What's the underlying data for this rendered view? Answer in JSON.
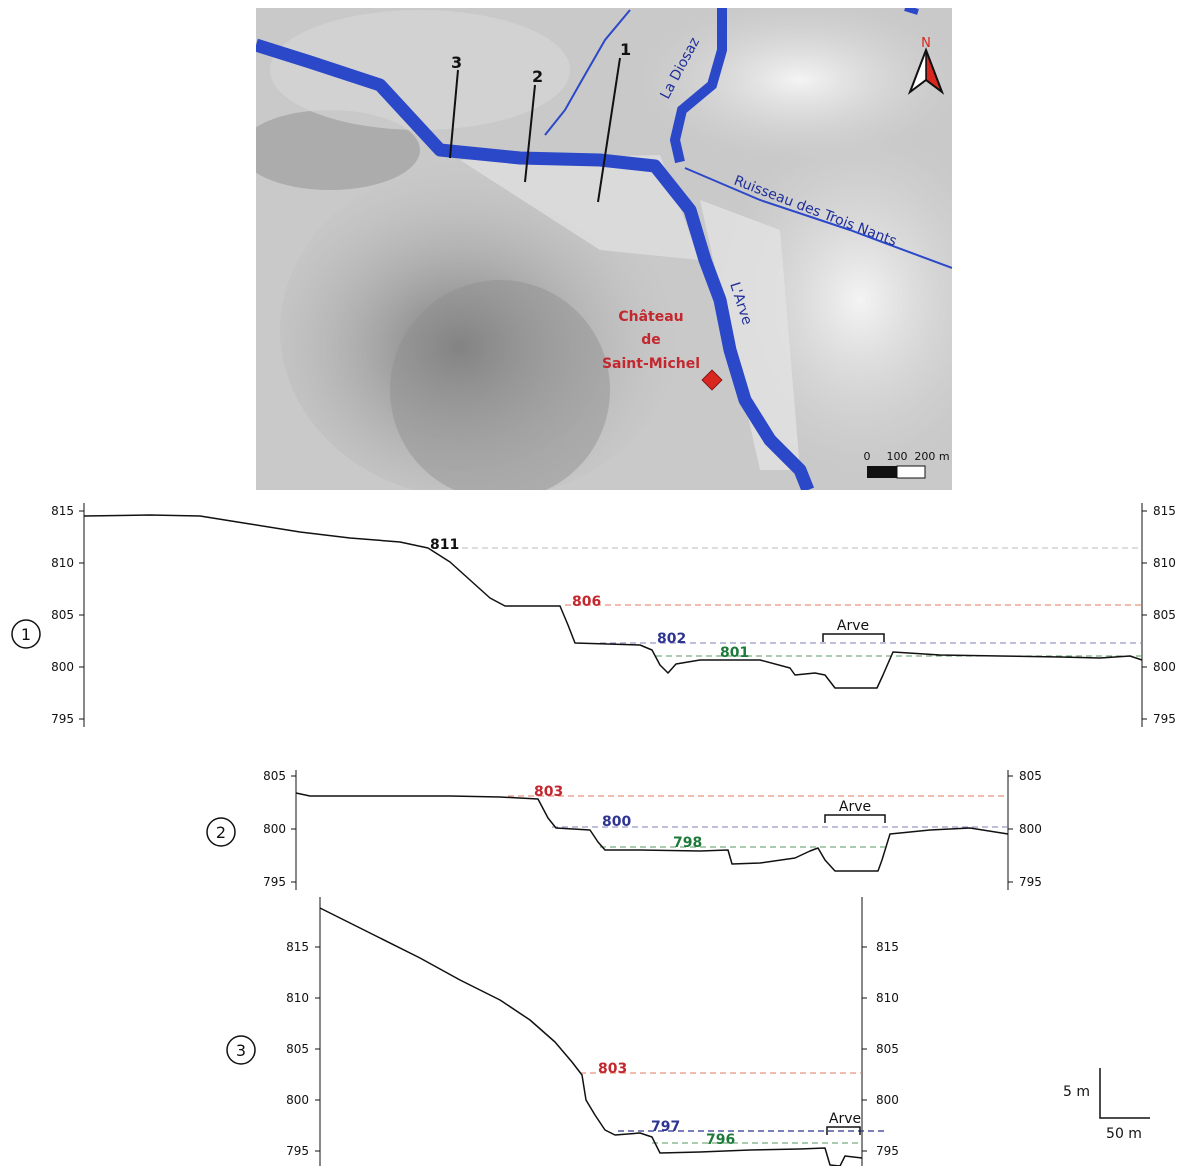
{
  "map": {
    "rivers": [
      "La Diosaz",
      "Ruisseau des Trois Nants",
      "L'Arve"
    ],
    "castle_lines": [
      "Château",
      "de",
      "Saint-Michel"
    ],
    "transect_labels": [
      "1",
      "2",
      "3"
    ],
    "north_label": "N",
    "scale_labels": [
      "0",
      "100",
      "200 m"
    ],
    "colors": {
      "river": "#2b48c8",
      "castle": "#c2282e",
      "north": "#d8271f"
    }
  },
  "profiles": [
    {
      "id": "1",
      "y_ticks": [
        795,
        800,
        805,
        810,
        815
      ],
      "channel_label": "Arve",
      "levels": [
        {
          "value": "811",
          "color": "#111111",
          "line": "#bbbbbb"
        },
        {
          "value": "806",
          "color": "#c2282e",
          "line": "#e07a60"
        },
        {
          "value": "802",
          "color": "#2e3591",
          "line": "#7f7fb8"
        },
        {
          "value": "801",
          "color": "#1e7a3a",
          "line": "#5a9a62"
        }
      ]
    },
    {
      "id": "2",
      "y_ticks": [
        795,
        800,
        805
      ],
      "channel_label": "Arve",
      "levels": [
        {
          "value": "803",
          "color": "#c2282e",
          "line": "#e07a60"
        },
        {
          "value": "800",
          "color": "#2e3591",
          "line": "#7f7fb8"
        },
        {
          "value": "798",
          "color": "#1e7a3a",
          "line": "#5a9a62"
        }
      ]
    },
    {
      "id": "3",
      "y_ticks": [
        795,
        800,
        805,
        810,
        815
      ],
      "channel_label": "Arve",
      "levels": [
        {
          "value": "803",
          "color": "#c2282e",
          "line": "#e07a60"
        },
        {
          "value": "797",
          "color": "#2e3591",
          "line": "#2e3591"
        },
        {
          "value": "796",
          "color": "#1e7a3a",
          "line": "#5a9a62"
        }
      ]
    }
  ],
  "scale_bar": {
    "vertical": "5 m",
    "horizontal": "50 m"
  }
}
